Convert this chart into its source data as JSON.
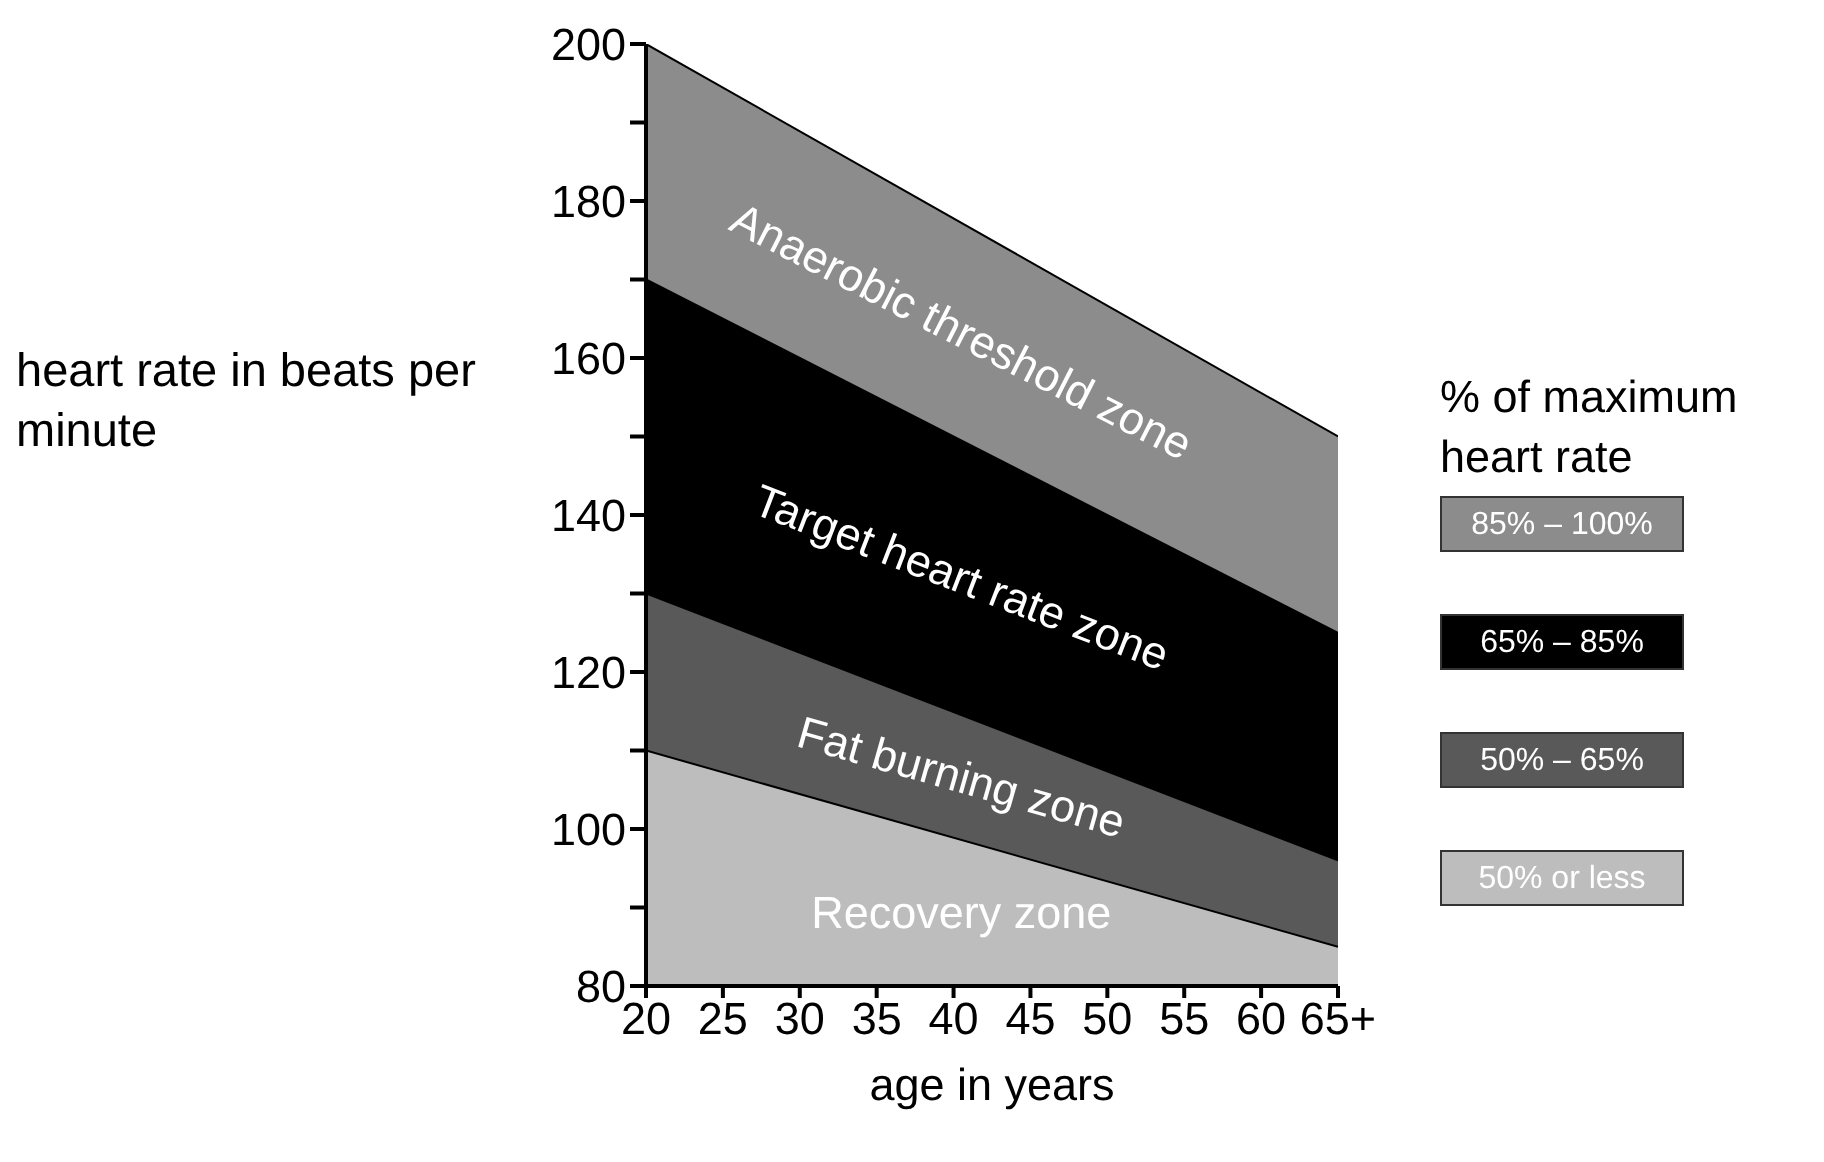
{
  "chart_data": {
    "type": "area",
    "xlabel": "age in years",
    "ylabel": "heart rate in beats per minute",
    "legend_title": "% of maximum heart rate",
    "legend": "right",
    "x": [
      20,
      65
    ],
    "series": [
      {
        "name": "85% – 100%",
        "color": "#8c8c8c",
        "values": [
          200,
          150
        ]
      },
      {
        "name": "65% – 85%",
        "color": "#000000",
        "values": [
          170,
          125
        ]
      },
      {
        "name": "50% – 65%",
        "color": "#595959",
        "values": [
          130,
          96
        ]
      },
      {
        "name": "50% or less",
        "color": "#bdbdbd",
        "values": [
          110,
          85
        ]
      }
    ],
    "xlim": [
      20,
      65
    ],
    "xticks": [
      20,
      25,
      30,
      35,
      40,
      45,
      50,
      55,
      60,
      {
        "value": 65,
        "label": "65+"
      }
    ],
    "ylim": [
      80,
      200
    ],
    "yticks": [
      80,
      {
        "value": 90,
        "label": null
      },
      100,
      {
        "value": 110,
        "label": null
      },
      120,
      {
        "value": 130,
        "label": null
      },
      140,
      {
        "value": 150,
        "label": null
      },
      160,
      {
        "value": 170,
        "label": null
      },
      180,
      {
        "value": 190,
        "label": null
      },
      200
    ],
    "annotations": [
      "Anaerobic threshold zone",
      "Target heart rate zone",
      "Fat burning zone",
      "Recovery zone"
    ]
  }
}
